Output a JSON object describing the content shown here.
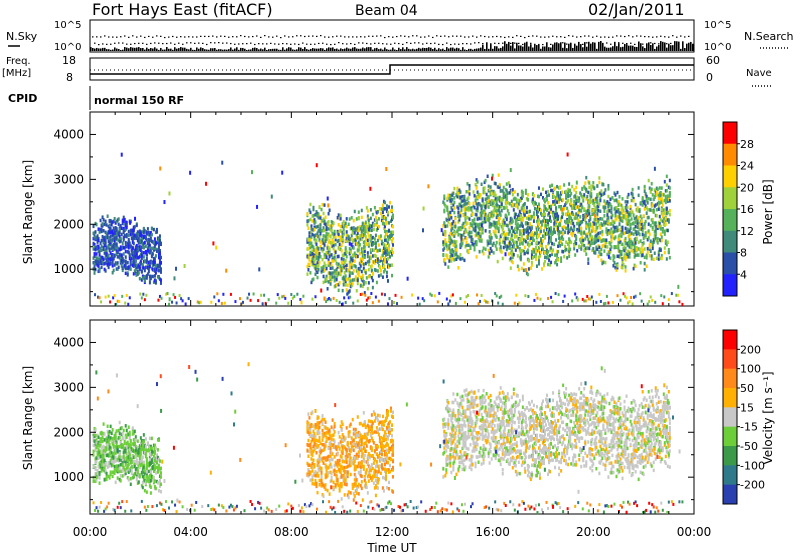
{
  "header": {
    "station": "Fort Hays East (fitACF)",
    "beam": "Beam 04",
    "date": "02/Jan/2011"
  },
  "status_panel": {
    "nsky_label": "N.Sky",
    "nsearch_label": "N.Search",
    "exp_label_left": "10^5",
    "exp_label_left_low": "10^0",
    "exp_label_right": "10^5",
    "exp_label_right_low": "10^0",
    "freq_label": "Freq.",
    "freq_unit": "[MHz]",
    "freq_ticks": [
      "18",
      "8"
    ],
    "nave_label": "Nave",
    "nave_ticks": [
      "60",
      "0"
    ],
    "cpid_label": "CPID",
    "cpid_value": "normal 150 RF"
  },
  "chart_data": [
    {
      "type": "heatmap",
      "name": "power",
      "ylabel": "Slant Range [km]",
      "ylim": [
        180,
        4500
      ],
      "yticks": [
        1000,
        2000,
        3000,
        4000
      ],
      "xlim": [
        0,
        24
      ],
      "colorbar_label": "Power [dB]",
      "colorbar_ticks": [
        "4",
        "8",
        "12",
        "16",
        "20",
        "24",
        "28"
      ],
      "colorbar_colors": [
        "#2222ff",
        "#2a4fa8",
        "#3f8a7a",
        "#56b25a",
        "#9fd23a",
        "#ffd000",
        "#ff8c00",
        "#ff0000"
      ],
      "echo_regions": [
        {
          "t0": 0.1,
          "t1": 2.8,
          "r0": 700,
          "r1": 2100,
          "dominant": "blue"
        },
        {
          "t0": 8.6,
          "t1": 12.0,
          "r0": 500,
          "r1": 2500,
          "dominant": "green-yellow"
        },
        {
          "t0": 14.0,
          "t1": 23.0,
          "r0": 1000,
          "r1": 3000,
          "dominant": "green"
        }
      ]
    },
    {
      "type": "heatmap",
      "name": "velocity",
      "ylabel": "Slant Range [km]",
      "ylim": [
        180,
        4500
      ],
      "yticks": [
        1000,
        2000,
        3000,
        4000
      ],
      "xlim": [
        0,
        24
      ],
      "xticks": [
        "00:00",
        "04:00",
        "08:00",
        "12:00",
        "16:00",
        "20:00",
        "00:00"
      ],
      "xlabel": "Time UT",
      "colorbar_label": "Velocity [m s⁻¹]",
      "colorbar_ticks": [
        "200",
        "100",
        "50",
        "15",
        "-15",
        "-50",
        "-100",
        "-200"
      ],
      "colorbar_colors": [
        "#2a3fb0",
        "#2f7a8a",
        "#3b9a4a",
        "#6ccf3a",
        "#c8c8c8",
        "#ffb000",
        "#ff8a1a",
        "#ff4a1a",
        "#ff0000"
      ],
      "echo_regions": [
        {
          "t0": 0.1,
          "t1": 2.8,
          "r0": 700,
          "r1": 2100,
          "dominant": "light-green"
        },
        {
          "t0": 8.6,
          "t1": 12.0,
          "r0": 500,
          "r1": 2500,
          "dominant": "orange"
        },
        {
          "t0": 14.0,
          "t1": 23.0,
          "r0": 1000,
          "r1": 3000,
          "dominant": "grey"
        }
      ]
    }
  ]
}
